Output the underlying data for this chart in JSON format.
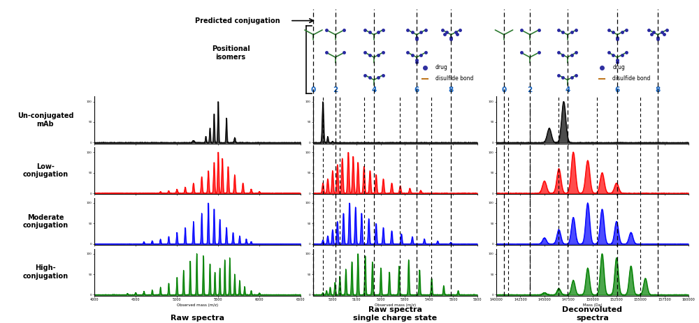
{
  "row_labels": [
    "Un-conjugated\nmAb",
    "Low-\nconjugation",
    "Moderate\nconjugation",
    "High-\nconjugation"
  ],
  "row_colors": [
    "black",
    "red",
    "blue",
    "green"
  ],
  "col_titles": [
    "Raw spectra",
    "Raw spectra\nsingle charge state",
    "Deconvoluted\nspectra"
  ],
  "dac_numbers": [
    "0",
    "2",
    "4",
    "6",
    "8"
  ],
  "predicted_conjugation_label": "Predicted conjugation",
  "positional_isomers_label": "Positional\nisomers",
  "drug_label": "drug",
  "disulfide_label": "disulfide bond",
  "drug_color": "#3030a0",
  "disulfide_color": "#c07820",
  "dac_number_color": "#1060c0",
  "background_color": "#ffffff",
  "fig_width": 10.0,
  "fig_height": 4.63
}
